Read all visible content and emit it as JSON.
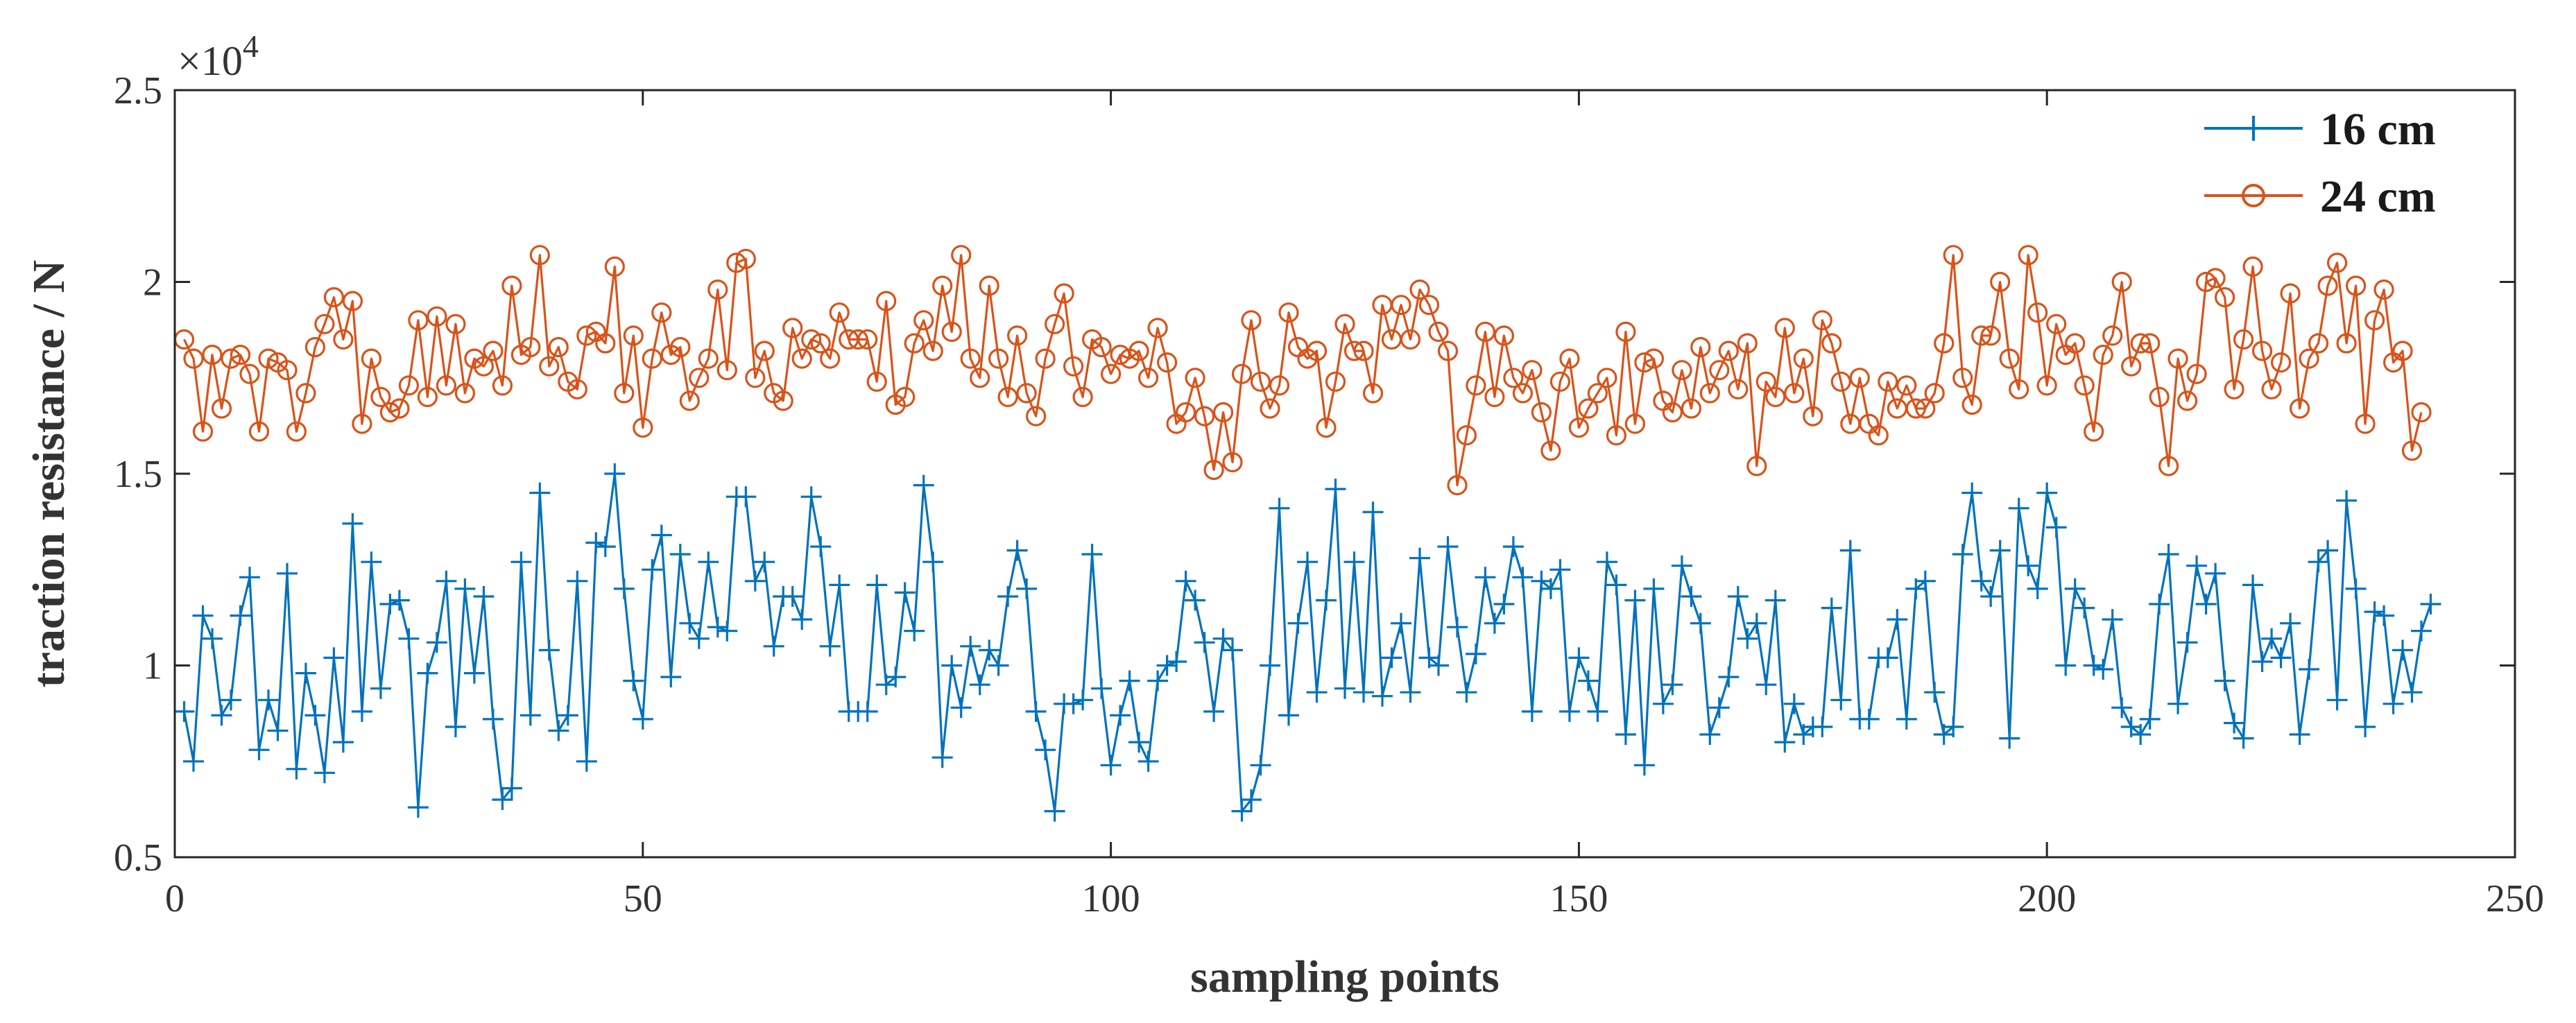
{
  "chart_data": {
    "type": "line",
    "title": "",
    "xlabel": "sampling points",
    "ylabel": "traction resistance / N",
    "y_multiplier_label": "×10",
    "y_multiplier_exp": "4",
    "xlim": [
      0,
      250
    ],
    "ylim": [
      0.5,
      2.5
    ],
    "xticks": [
      0,
      50,
      100,
      150,
      200,
      250
    ],
    "xtick_labels": [
      "0",
      "50",
      "100",
      "150",
      "200",
      "250"
    ],
    "yticks": [
      0.5,
      1,
      1.5,
      2,
      2.5
    ],
    "ytick_labels": [
      "0.5",
      "1",
      "1.5",
      "2",
      "2.5"
    ],
    "grid": false,
    "legend_position": "top-right",
    "series": [
      {
        "name": "16 cm",
        "color": "#0072BD",
        "marker": "plus",
        "x_start": 1,
        "values": [
          0.88,
          0.75,
          1.13,
          1.07,
          0.87,
          0.91,
          1.13,
          1.23,
          0.78,
          0.91,
          0.83,
          1.24,
          0.73,
          0.98,
          0.87,
          0.72,
          1.02,
          0.8,
          1.37,
          0.88,
          1.27,
          0.94,
          1.16,
          1.17,
          1.07,
          0.63,
          0.98,
          1.06,
          1.22,
          0.84,
          1.2,
          0.98,
          1.18,
          0.86,
          0.65,
          0.68,
          1.27,
          0.87,
          1.45,
          1.04,
          0.83,
          0.87,
          1.22,
          0.75,
          1.32,
          1.31,
          1.5,
          1.2,
          0.96,
          0.86,
          1.25,
          1.34,
          0.97,
          1.29,
          1.11,
          1.07,
          1.27,
          1.1,
          1.09,
          1.44,
          1.44,
          1.22,
          1.27,
          1.05,
          1.18,
          1.18,
          1.12,
          1.44,
          1.31,
          1.05,
          1.21,
          0.88,
          0.88,
          0.88,
          1.21,
          0.95,
          0.97,
          1.19,
          1.09,
          1.47,
          1.27,
          0.76,
          1.0,
          0.89,
          1.05,
          0.95,
          1.04,
          1.0,
          1.18,
          1.3,
          1.2,
          0.88,
          0.78,
          0.62,
          0.9,
          0.9,
          0.91,
          1.29,
          0.94,
          0.74,
          0.87,
          0.96,
          0.8,
          0.75,
          0.96,
          1.0,
          1.01,
          1.22,
          1.17,
          1.06,
          0.88,
          1.07,
          1.04,
          0.62,
          0.65,
          0.74,
          1.0,
          1.41,
          0.87,
          1.11,
          1.27,
          0.93,
          1.17,
          1.46,
          0.94,
          1.27,
          0.93,
          1.4,
          0.92,
          1.02,
          1.11,
          0.93,
          1.28,
          1.02,
          1.0,
          1.31,
          1.1,
          0.93,
          1.03,
          1.23,
          1.11,
          1.16,
          1.31,
          1.23,
          0.88,
          1.22,
          1.2,
          1.25,
          0.88,
          1.02,
          0.96,
          0.88,
          1.27,
          1.21,
          0.82,
          1.17,
          0.74,
          1.2,
          0.9,
          0.95,
          1.26,
          1.18,
          1.11,
          0.82,
          0.89,
          0.97,
          1.18,
          1.07,
          1.11,
          0.95,
          1.17,
          0.8,
          0.9,
          0.82,
          0.84,
          0.84,
          1.15,
          0.91,
          1.3,
          0.86,
          0.86,
          1.02,
          1.02,
          1.12,
          0.86,
          1.2,
          1.22,
          0.93,
          0.82,
          0.84,
          1.29,
          1.45,
          1.22,
          1.18,
          1.3,
          0.81,
          1.41,
          1.26,
          1.2,
          1.45,
          1.36,
          1.0,
          1.2,
          1.15,
          1.0,
          0.99,
          1.12,
          0.89,
          0.84,
          0.82,
          0.86,
          1.16,
          1.29,
          0.9,
          1.06,
          1.26,
          1.16,
          1.24,
          0.96,
          0.85,
          0.81,
          1.21,
          1.01,
          1.07,
          1.02,
          1.11,
          0.82,
          0.99,
          1.27,
          1.3,
          0.91,
          1.43,
          1.2,
          0.84,
          1.14,
          1.13,
          0.9,
          1.04,
          0.93,
          1.09,
          1.16
        ]
      },
      {
        "name": "24 cm",
        "color": "#D95319",
        "marker": "circle",
        "x_start": 1,
        "values": [
          1.85,
          1.8,
          1.61,
          1.81,
          1.67,
          1.8,
          1.81,
          1.76,
          1.61,
          1.8,
          1.79,
          1.77,
          1.61,
          1.71,
          1.83,
          1.89,
          1.96,
          1.85,
          1.95,
          1.63,
          1.8,
          1.7,
          1.66,
          1.67,
          1.73,
          1.9,
          1.7,
          1.91,
          1.73,
          1.89,
          1.71,
          1.8,
          1.78,
          1.82,
          1.73,
          1.99,
          1.81,
          1.83,
          2.07,
          1.78,
          1.83,
          1.74,
          1.72,
          1.86,
          1.87,
          1.84,
          2.04,
          1.71,
          1.86,
          1.62,
          1.8,
          1.92,
          1.81,
          1.83,
          1.69,
          1.75,
          1.8,
          1.98,
          1.77,
          2.05,
          2.06,
          1.75,
          1.82,
          1.71,
          1.69,
          1.88,
          1.8,
          1.85,
          1.84,
          1.8,
          1.92,
          1.85,
          1.85,
          1.85,
          1.74,
          1.95,
          1.68,
          1.7,
          1.84,
          1.9,
          1.82,
          1.99,
          1.87,
          2.07,
          1.8,
          1.75,
          1.99,
          1.8,
          1.7,
          1.86,
          1.71,
          1.65,
          1.8,
          1.89,
          1.97,
          1.78,
          1.7,
          1.85,
          1.83,
          1.76,
          1.81,
          1.8,
          1.82,
          1.75,
          1.88,
          1.79,
          1.63,
          1.66,
          1.75,
          1.65,
          1.51,
          1.66,
          1.53,
          1.76,
          1.9,
          1.74,
          1.67,
          1.73,
          1.92,
          1.83,
          1.8,
          1.82,
          1.62,
          1.74,
          1.89,
          1.82,
          1.82,
          1.71,
          1.94,
          1.85,
          1.94,
          1.85,
          1.98,
          1.94,
          1.87,
          1.82,
          1.47,
          1.6,
          1.73,
          1.87,
          1.7,
          1.86,
          1.75,
          1.71,
          1.77,
          1.66,
          1.56,
          1.74,
          1.8,
          1.62,
          1.67,
          1.71,
          1.75,
          1.6,
          1.87,
          1.63,
          1.79,
          1.8,
          1.69,
          1.66,
          1.77,
          1.67,
          1.83,
          1.71,
          1.77,
          1.82,
          1.72,
          1.84,
          1.52,
          1.74,
          1.7,
          1.88,
          1.71,
          1.8,
          1.65,
          1.9,
          1.84,
          1.74,
          1.63,
          1.75,
          1.63,
          1.6,
          1.74,
          1.67,
          1.73,
          1.67,
          1.67,
          1.71,
          1.84,
          2.07,
          1.75,
          1.68,
          1.86,
          1.86,
          2.0,
          1.8,
          1.72,
          2.07,
          1.92,
          1.73,
          1.89,
          1.81,
          1.84,
          1.73,
          1.61,
          1.81,
          1.86,
          2.0,
          1.78,
          1.84,
          1.84,
          1.7,
          1.52,
          1.8,
          1.69,
          1.76,
          2.0,
          2.01,
          1.96,
          1.72,
          1.85,
          2.04,
          1.82,
          1.72,
          1.79,
          1.97,
          1.67,
          1.8,
          1.84,
          1.99,
          2.05,
          1.84,
          1.99,
          1.63,
          1.9,
          1.98,
          1.79,
          1.82,
          1.56,
          1.66
        ]
      }
    ]
  }
}
